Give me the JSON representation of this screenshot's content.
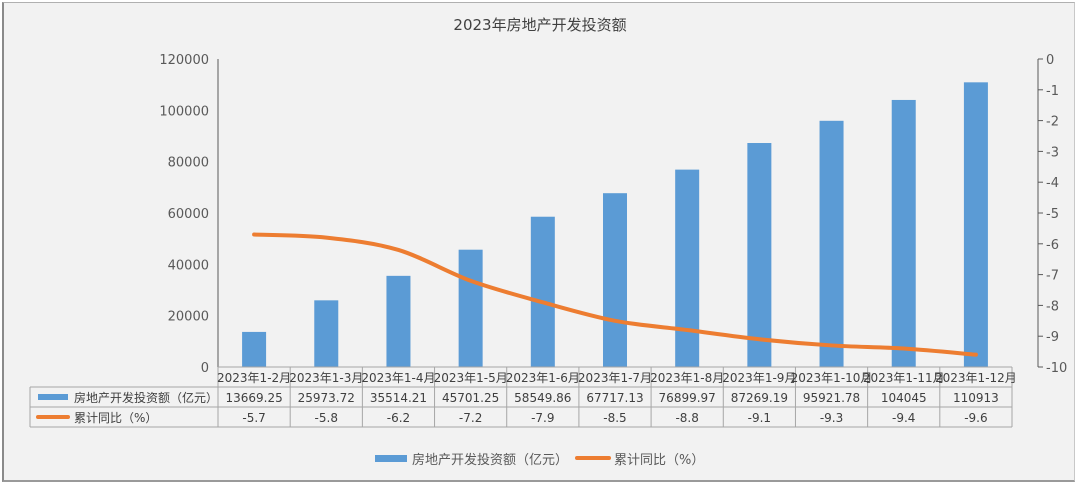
{
  "chart_data": {
    "type": "bar",
    "title": "2023年房地产开发投资额",
    "categories": [
      "2023年1-2月",
      "2023年1-3月",
      "2023年1-4月",
      "2023年1-5月",
      "2023年1-6月",
      "2023年1-7月",
      "2023年1-8月",
      "2023年1-9月",
      "2023年1-10月",
      "2023年1-11月",
      "2023年1-12月"
    ],
    "series": [
      {
        "name": "房地产开发投资额（亿元）",
        "type": "bar",
        "axis": "left",
        "color": "#5b9bd5",
        "values": [
          13669.25,
          25973.72,
          35514.21,
          45701.25,
          58549.86,
          67717.13,
          76899.97,
          87269.19,
          95921.78,
          104045,
          110913
        ],
        "labels": [
          "13669.25",
          "25973.72",
          "35514.21",
          "45701.25",
          "58549.86",
          "67717.13",
          "76899.97",
          "87269.19",
          "95921.78",
          "104045",
          "110913"
        ]
      },
      {
        "name": "累计同比（%）",
        "type": "line",
        "axis": "right",
        "color": "#ed7d31",
        "values": [
          -5.7,
          -5.8,
          -6.2,
          -7.2,
          -7.9,
          -8.5,
          -8.8,
          -9.1,
          -9.3,
          -9.4,
          -9.6
        ],
        "labels": [
          "-5.7",
          "-5.8",
          "-6.2",
          "-7.2",
          "-7.9",
          "-8.5",
          "-8.8",
          "-9.1",
          "-9.3",
          "-9.4",
          "-9.6"
        ]
      }
    ],
    "y_left": {
      "range": [
        0,
        120000
      ],
      "ticks": [
        "0",
        "20000",
        "40000",
        "60000",
        "80000",
        "100000",
        "120000"
      ]
    },
    "y_right": {
      "range": [
        -10,
        0
      ],
      "ticks": [
        "0",
        "-1",
        "-2",
        "-3",
        "-4",
        "-5",
        "-6",
        "-7",
        "-8",
        "-9",
        "-10"
      ]
    },
    "data_table": true,
    "grid": false,
    "legend_position": "bottom"
  }
}
